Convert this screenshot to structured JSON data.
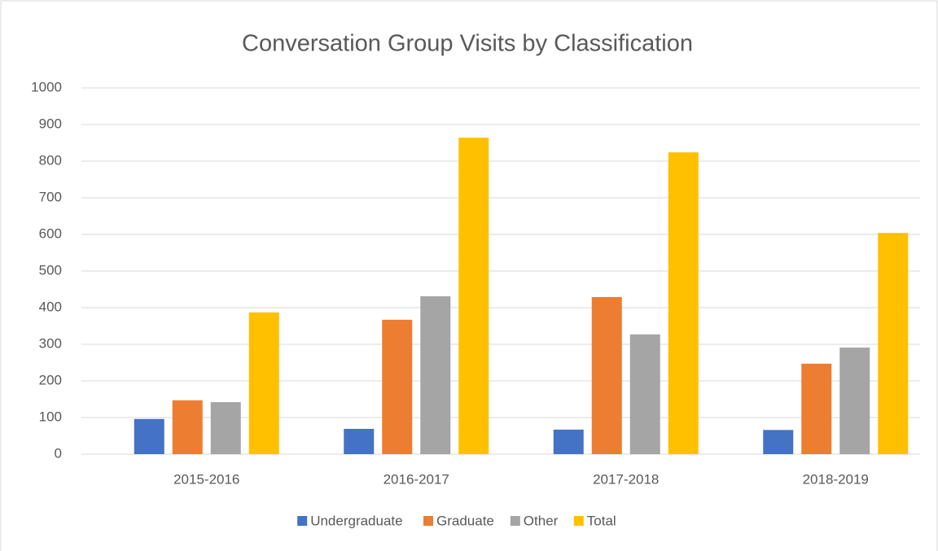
{
  "chart_data": {
    "type": "bar",
    "title": "Conversation Group Visits by Classification",
    "categories": [
      "2015-2016",
      "2016-2017",
      "2017-2018",
      "2018-2019"
    ],
    "series": [
      {
        "name": "Undergraduate",
        "color": "#4472c4",
        "values": [
          96,
          69,
          67,
          66
        ]
      },
      {
        "name": "Graduate",
        "color": "#ed7d31",
        "values": [
          147,
          367,
          429,
          247
        ]
      },
      {
        "name": "Other",
        "color": "#a5a5a5",
        "values": [
          142,
          431,
          327,
          291
        ]
      },
      {
        "name": "Total",
        "color": "#ffc000",
        "values": [
          387,
          864,
          824,
          604
        ]
      }
    ],
    "ylim": [
      0,
      1000
    ],
    "yticks": [
      0,
      100,
      200,
      300,
      400,
      500,
      600,
      700,
      800,
      900,
      1000
    ],
    "grid": true,
    "legend": "bottom"
  }
}
